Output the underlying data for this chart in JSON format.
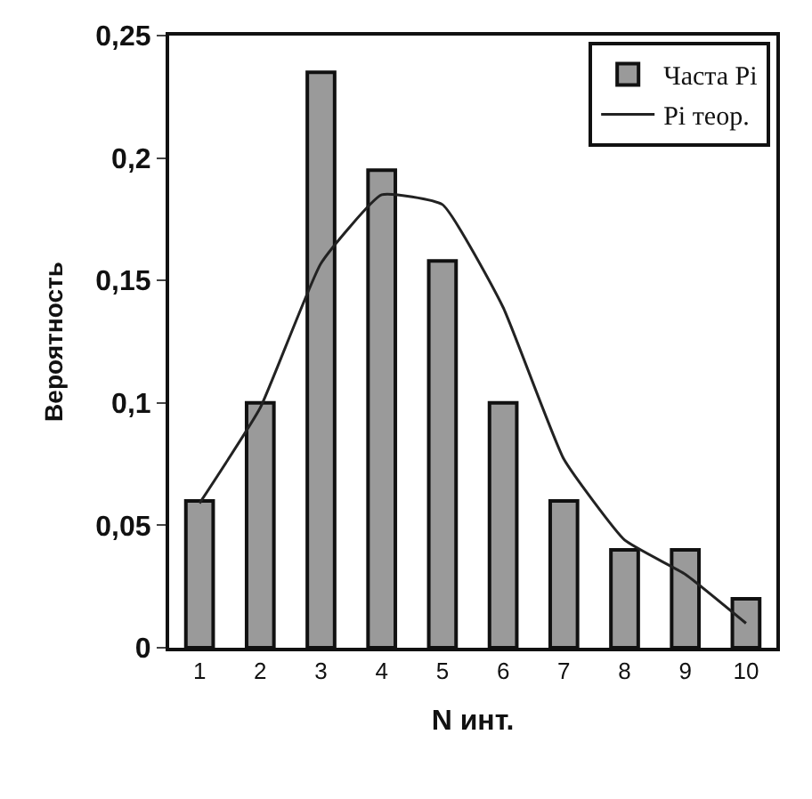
{
  "chart_data": {
    "type": "bar",
    "xlabel": "N инт.",
    "ylabel": "Вероятность",
    "categories": [
      "1",
      "2",
      "3",
      "4",
      "5",
      "6",
      "7",
      "8",
      "9",
      "10"
    ],
    "series": [
      {
        "name": "Часта Pi",
        "color": "#9a9a9a",
        "values": [
          0.06,
          0.1,
          0.235,
          0.195,
          0.158,
          0.1,
          0.06,
          0.04,
          0.04,
          0.02
        ]
      },
      {
        "name": "Pi теор.",
        "type": "line",
        "color": "#222222",
        "values": [
          0.059,
          0.098,
          0.157,
          0.185,
          0.181,
          0.139,
          0.077,
          0.044,
          0.03,
          0.01
        ]
      }
    ],
    "ylim": [
      0,
      0.25
    ],
    "yticks": [
      {
        "value": 0,
        "label": "0"
      },
      {
        "value": 0.05,
        "label": "0,05"
      },
      {
        "value": 0.1,
        "label": "0,1"
      },
      {
        "value": 0.15,
        "label": "0,15"
      },
      {
        "value": 0.2,
        "label": "0,2"
      },
      {
        "value": 0.25,
        "label": "0,25"
      }
    ],
    "legend": "top right",
    "marker": "none",
    "line_style": "solid"
  }
}
